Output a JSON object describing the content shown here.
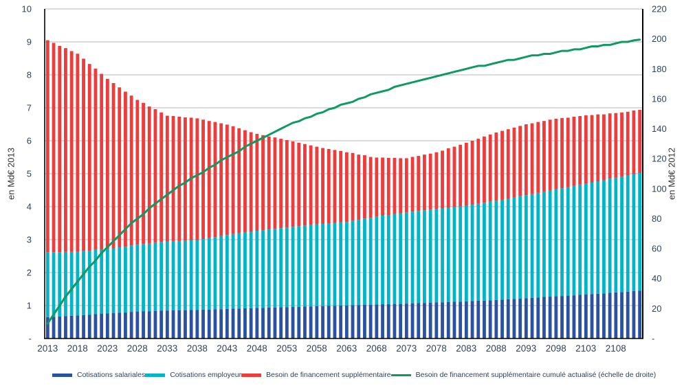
{
  "chart_data": {
    "type": "combo",
    "subtype": "stacked-bar-with-line",
    "title": "",
    "ylabel_left": "en Md€ 2013",
    "ylabel_right": "en Md€ 2012",
    "grid": true,
    "legend_position": "bottom",
    "x_start_year": 2013,
    "x_end_year": 2112,
    "x_tick_labels": [
      "2013",
      "2018",
      "2023",
      "2028",
      "2033",
      "2038",
      "2043",
      "2048",
      "2053",
      "2058",
      "2063",
      "2068",
      "2073",
      "2078",
      "2083",
      "2088",
      "2093",
      "2098",
      "2103",
      "2108"
    ],
    "left_axis": {
      "min": 0,
      "max": 10,
      "tick_step": 1,
      "tick_labels": [
        "10",
        "9",
        "8",
        "7",
        "6",
        "5",
        "4",
        "3",
        "2",
        "1",
        "-"
      ]
    },
    "right_axis": {
      "min": 0,
      "max": 220,
      "tick_step": 20,
      "tick_labels": [
        "220",
        "200",
        "180",
        "160",
        "140",
        "120",
        "100",
        "80",
        "60",
        "40",
        "20",
        "-"
      ]
    },
    "series": [
      {
        "name": "Cotisations salariales",
        "type": "bar",
        "stack": true,
        "axis": "left",
        "color": "#2b51a3",
        "values": [
          0.65,
          0.66,
          0.67,
          0.68,
          0.69,
          0.7,
          0.71,
          0.72,
          0.74,
          0.75,
          0.76,
          0.77,
          0.78,
          0.79,
          0.81,
          0.82,
          0.83,
          0.83,
          0.84,
          0.85,
          0.85,
          0.86,
          0.86,
          0.86,
          0.87,
          0.87,
          0.88,
          0.88,
          0.89,
          0.89,
          0.9,
          0.91,
          0.91,
          0.92,
          0.92,
          0.93,
          0.93,
          0.94,
          0.94,
          0.95,
          0.95,
          0.96,
          0.96,
          0.97,
          0.97,
          0.98,
          0.98,
          0.99,
          0.99,
          1.0,
          1.0,
          1.01,
          1.01,
          1.02,
          1.02,
          1.03,
          1.04,
          1.04,
          1.05,
          1.05,
          1.06,
          1.07,
          1.08,
          1.08,
          1.09,
          1.1,
          1.1,
          1.11,
          1.12,
          1.12,
          1.13,
          1.14,
          1.15,
          1.15,
          1.16,
          1.17,
          1.18,
          1.19,
          1.2,
          1.21,
          1.22,
          1.23,
          1.24,
          1.26,
          1.27,
          1.28,
          1.29,
          1.3,
          1.31,
          1.33,
          1.34,
          1.35,
          1.36,
          1.37,
          1.39,
          1.4,
          1.41,
          1.42,
          1.44,
          1.45
        ]
      },
      {
        "name": "Cotisations employeur",
        "type": "bar",
        "stack": true,
        "axis": "left",
        "color": "#00b5c8",
        "values": [
          1.97,
          1.96,
          1.95,
          1.95,
          1.94,
          1.93,
          1.94,
          1.94,
          1.95,
          1.95,
          1.96,
          1.97,
          1.99,
          2.0,
          2.02,
          2.03,
          2.04,
          2.05,
          2.07,
          2.08,
          2.09,
          2.1,
          2.1,
          2.11,
          2.11,
          2.12,
          2.14,
          2.17,
          2.19,
          2.22,
          2.24,
          2.26,
          2.28,
          2.3,
          2.32,
          2.34,
          2.36,
          2.37,
          2.39,
          2.4,
          2.42,
          2.43,
          2.45,
          2.46,
          2.48,
          2.49,
          2.5,
          2.51,
          2.52,
          2.53,
          2.54,
          2.57,
          2.59,
          2.62,
          2.64,
          2.67,
          2.69,
          2.71,
          2.73,
          2.75,
          2.77,
          2.78,
          2.79,
          2.81,
          2.82,
          2.83,
          2.84,
          2.86,
          2.87,
          2.89,
          2.9,
          2.92,
          2.94,
          2.97,
          2.99,
          3.01,
          3.03,
          3.06,
          3.08,
          3.11,
          3.13,
          3.15,
          3.18,
          3.2,
          3.23,
          3.25,
          3.27,
          3.29,
          3.32,
          3.34,
          3.36,
          3.38,
          3.41,
          3.43,
          3.46,
          3.48,
          3.5,
          3.52,
          3.55,
          3.57
        ]
      },
      {
        "name": "Besoin de financement supplémentaire",
        "type": "bar",
        "stack": true,
        "axis": "left",
        "color": "#ee3b3b",
        "values": [
          6.43,
          6.35,
          6.26,
          6.18,
          6.09,
          6.01,
          5.84,
          5.67,
          5.5,
          5.33,
          5.16,
          5.01,
          4.85,
          4.7,
          4.54,
          4.39,
          4.28,
          4.16,
          4.05,
          3.93,
          3.82,
          3.79,
          3.77,
          3.74,
          3.72,
          3.69,
          3.62,
          3.55,
          3.49,
          3.42,
          3.35,
          3.27,
          3.19,
          3.1,
          3.02,
          2.94,
          2.88,
          2.82,
          2.77,
          2.71,
          2.65,
          2.59,
          2.53,
          2.47,
          2.41,
          2.35,
          2.3,
          2.25,
          2.21,
          2.16,
          2.11,
          2.05,
          1.98,
          1.92,
          1.85,
          1.79,
          1.76,
          1.73,
          1.7,
          1.67,
          1.64,
          1.66,
          1.67,
          1.69,
          1.7,
          1.72,
          1.76,
          1.8,
          1.83,
          1.87,
          1.91,
          1.94,
          1.97,
          2.01,
          2.04,
          2.07,
          2.09,
          2.1,
          2.12,
          2.13,
          2.15,
          2.15,
          2.15,
          2.14,
          2.14,
          2.14,
          2.13,
          2.11,
          2.1,
          2.08,
          2.07,
          2.05,
          2.03,
          2.0,
          1.98,
          1.96,
          1.95,
          1.94,
          1.93,
          1.92
        ]
      },
      {
        "name": "Besoin de financement supplémentaire cumulé actualisé (échelle de droite)",
        "type": "line",
        "stack": false,
        "axis": "right",
        "color": "#0e9a62",
        "values": [
          10,
          16,
          22,
          28,
          33,
          38,
          43,
          48,
          52,
          57,
          61,
          65,
          69,
          73,
          77,
          80,
          83,
          87,
          90,
          93,
          96,
          99,
          102,
          104,
          107,
          109,
          111,
          114,
          116,
          119,
          121,
          123,
          125,
          128,
          130,
          132,
          134,
          136,
          138,
          140,
          142,
          144,
          145,
          147,
          148,
          150,
          151,
          153,
          154,
          156,
          157,
          158,
          160,
          161,
          163,
          164,
          165,
          166,
          168,
          169,
          170,
          171,
          172,
          173,
          174,
          175,
          176,
          177,
          178,
          179,
          180,
          181,
          182,
          182,
          183,
          184,
          185,
          186,
          186,
          187,
          188,
          189,
          189,
          190,
          190,
          191,
          192,
          192,
          193,
          193,
          194,
          195,
          195,
          196,
          196,
          197,
          198,
          198,
          199,
          199.5
        ]
      }
    ],
    "colors": {
      "grid": "#b7b7b7",
      "axis_line": "#000000",
      "tick_label": "#31425a"
    }
  }
}
